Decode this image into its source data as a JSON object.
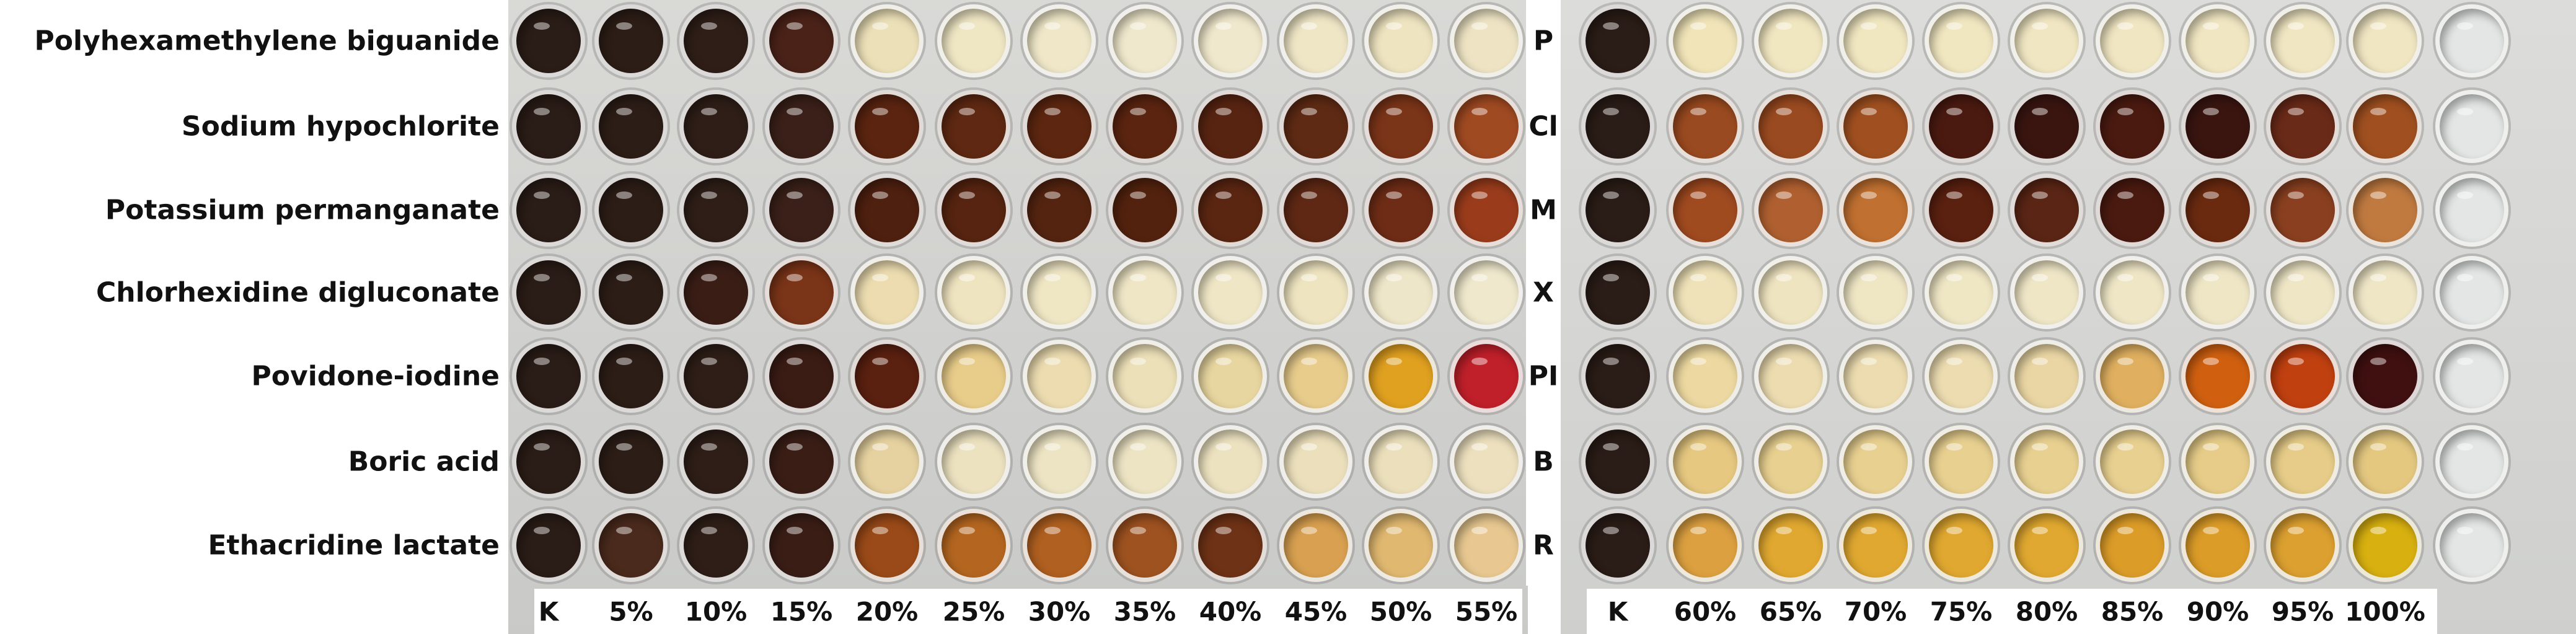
{
  "row_labels": [
    "Polyhexamethylene biguanide",
    "Sodium hypochlorite",
    "Potassium permanganate",
    "Chlorhexidine digluconate",
    "Povidone-iodine",
    "Boric acid",
    "Ethacridine lactate"
  ],
  "row_letters": [
    "P",
    "Cl",
    "M",
    "X",
    "PI",
    "B",
    "R"
  ],
  "left_columns": [
    "K",
    "5%",
    "10%",
    "15%",
    "20%",
    "25%",
    "30%",
    "35%",
    "40%",
    "45%",
    "50%",
    "55%"
  ],
  "right_columns": [
    "K",
    "60%",
    "65%",
    "70%",
    "75%",
    "80%",
    "85%",
    "90%",
    "95%",
    "100%"
  ],
  "well_colors_left": [
    [
      "#2a1c16",
      "#2c1d16",
      "#2e1e17",
      "#4a2218",
      "#ece0b8",
      "#efe6c4",
      "#efe7c8",
      "#efe8cc",
      "#f0e8cc",
      "#efe6c6",
      "#eee4c0",
      "#eee4c4"
    ],
    [
      "#2a1c16",
      "#2c1d16",
      "#2e1e17",
      "#3a2018",
      "#5a2410",
      "#5e2812",
      "#5c2610",
      "#5a2410",
      "#582412",
      "#5e2a14",
      "#7a3418",
      "#a04a22"
    ],
    [
      "#2a1c16",
      "#2c1d16",
      "#2e1e17",
      "#3a2018",
      "#4e2010",
      "#562410",
      "#542410",
      "#52220e",
      "#5a2612",
      "#5e2814",
      "#6e2c16",
      "#9a3c1c"
    ],
    [
      "#2a1c16",
      "#2c1d16",
      "#3a1e16",
      "#7a3418",
      "#ecdcb0",
      "#efe4c0",
      "#efe6c4",
      "#efe6c6",
      "#efe6c6",
      "#eee4c0",
      "#eee6c8",
      "#efe8cc"
    ],
    [
      "#2a1c16",
      "#2c1d16",
      "#2e1e17",
      "#3a1c14",
      "#5a2010",
      "#e8cc8a",
      "#ecdcb0",
      "#ece0b8",
      "#e8d6a0",
      "#e8cc8c",
      "#e0a020",
      "#c0202a"
    ],
    [
      "#2a1c16",
      "#2c1d16",
      "#2e1e17",
      "#3a1e16",
      "#e6d2a0",
      "#ece2c0",
      "#ede4c4",
      "#ede4c4",
      "#ece2c0",
      "#ece0bc",
      "#ece0bc",
      "#ece0be"
    ],
    [
      "#2a1c16",
      "#4a2a1c",
      "#2e1e17",
      "#3a1e16",
      "#9a4a18",
      "#b46620",
      "#b06020",
      "#9e5220",
      "#6e3216",
      "#d8a050",
      "#e0b870",
      "#e8c890"
    ]
  ],
  "well_colors_right": [
    [
      "#2a1c16",
      "#f0e4b8",
      "#f0e6c0",
      "#f0e6c0",
      "#f0e6c0",
      "#f0e6c2",
      "#f0e6c2",
      "#f0e6c2",
      "#f0e6c2",
      "#f0e6c2",
      "#e4e6e6"
    ],
    [
      "#2a1c16",
      "#9a4a20",
      "#9a4a20",
      "#a05020",
      "#4a1a10",
      "#3a1510",
      "#4a1a10",
      "#3a1510",
      "#6a2a18",
      "#a05020",
      "#e4e6e6"
    ],
    [
      "#2a1c16",
      "#a04a20",
      "#b06030",
      "#c07030",
      "#5a2010",
      "#5a2515",
      "#4a1a10",
      "#6a2a10",
      "#8a4020",
      "#c07a40",
      "#e4e6e6"
    ],
    [
      "#2a1c16",
      "#efe2b8",
      "#efe4c0",
      "#efe6c4",
      "#efe6c4",
      "#efe6c6",
      "#efe6c6",
      "#efe6c6",
      "#efe6c6",
      "#efe6c6",
      "#e4e6e6"
    ],
    [
      "#2a1c16",
      "#ecd8a0",
      "#ecdcb0",
      "#ecdcb0",
      "#ecdcb0",
      "#ead6a4",
      "#e0b060",
      "#d06010",
      "#c04010",
      "#401010",
      "#e4e6e6"
    ],
    [
      "#2a1c16",
      "#e6c880",
      "#e8d090",
      "#e8d090",
      "#e8d090",
      "#e8d090",
      "#e8d090",
      "#e6cc88",
      "#e6cc88",
      "#e4c880",
      "#e4e6e6"
    ],
    [
      "#2a1c16",
      "#dca040",
      "#e0a830",
      "#e0a830",
      "#e0a830",
      "#e0a830",
      "#dc9c28",
      "#dc9c28",
      "#dca030",
      "#d8b010",
      "#e4e6e6"
    ]
  ]
}
